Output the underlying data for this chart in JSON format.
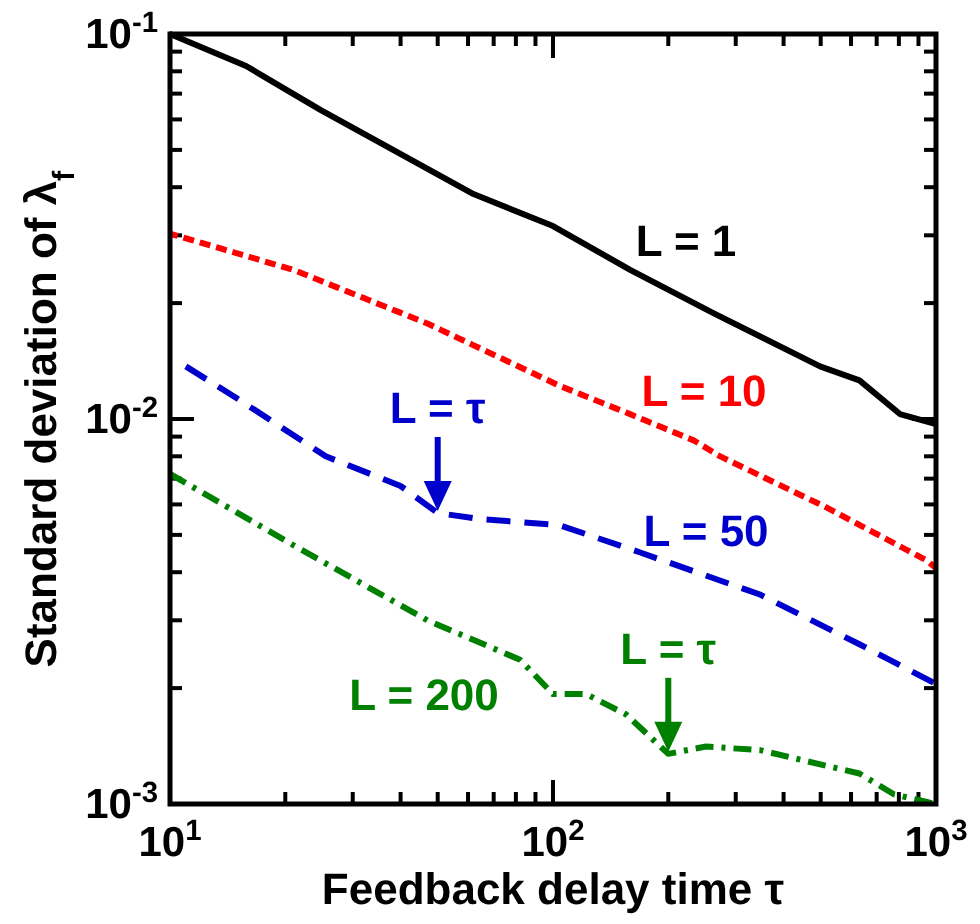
{
  "chart_data": {
    "type": "line",
    "xlabel": "Feedback delay time τ",
    "ylabel": "Standard deviation of λ$_{f}$",
    "log": "xy",
    "grid": false,
    "marker": "none",
    "xlim": [
      10,
      1000
    ],
    "ylim": [
      0.001,
      0.1
    ],
    "xticks": [
      {
        "value": 10,
        "label": "10$^{1}$"
      },
      {
        "value": 20,
        "label": null
      },
      {
        "value": 30,
        "label": null
      },
      {
        "value": 40,
        "label": null
      },
      {
        "value": 50,
        "label": null
      },
      {
        "value": 60,
        "label": null
      },
      {
        "value": 70,
        "label": null
      },
      {
        "value": 80,
        "label": null
      },
      {
        "value": 90,
        "label": null
      },
      {
        "value": 100,
        "label": "10$^{2}$"
      },
      {
        "value": 200,
        "label": null
      },
      {
        "value": 300,
        "label": null
      },
      {
        "value": 400,
        "label": null
      },
      {
        "value": 500,
        "label": null
      },
      {
        "value": 600,
        "label": null
      },
      {
        "value": 700,
        "label": null
      },
      {
        "value": 800,
        "label": null
      },
      {
        "value": 900,
        "label": null
      },
      {
        "value": 1000,
        "label": "10$^{3}$"
      }
    ],
    "yticks": [
      {
        "value": 0.001,
        "label": "10$^{-3}$"
      },
      {
        "value": 0.002,
        "label": null
      },
      {
        "value": 0.003,
        "label": null
      },
      {
        "value": 0.004,
        "label": null
      },
      {
        "value": 0.005,
        "label": null
      },
      {
        "value": 0.006,
        "label": null
      },
      {
        "value": 0.007,
        "label": null
      },
      {
        "value": 0.008,
        "label": null
      },
      {
        "value": 0.009,
        "label": null
      },
      {
        "value": 0.01,
        "label": "10$^{-2}$"
      },
      {
        "value": 0.02,
        "label": null
      },
      {
        "value": 0.03,
        "label": null
      },
      {
        "value": 0.04,
        "label": null
      },
      {
        "value": 0.05,
        "label": null
      },
      {
        "value": 0.06,
        "label": null
      },
      {
        "value": 0.07,
        "label": null
      },
      {
        "value": 0.08,
        "label": null
      },
      {
        "value": 0.09,
        "label": null
      },
      {
        "value": 0.1,
        "label": "10$^{-1}$"
      }
    ],
    "series": [
      {
        "name": "L = 1",
        "color": "#000000",
        "line_style": "solid",
        "x": [
          10,
          15.8,
          24.7,
          62,
          100,
          159,
          263,
          498,
          631,
          805,
          1000
        ],
        "values": [
          0.1,
          0.0826,
          0.0635,
          0.0384,
          0.0317,
          0.0244,
          0.0188,
          0.0137,
          0.0126,
          0.0103,
          0.0097
        ]
      },
      {
        "name": "L = 10",
        "color": "#ff0000",
        "line_style": "dotted",
        "x": [
          10,
          21,
          47,
          104,
          155,
          233,
          273,
          516,
          942,
          1000
        ],
        "values": [
          0.0303,
          0.0244,
          0.0177,
          0.0122,
          0.0104,
          0.0088,
          0.008,
          0.0059,
          0.0043,
          0.0041
        ]
      },
      {
        "name": "L = 50",
        "color": "#0000cc",
        "line_style": "dashed",
        "x": [
          11,
          15.2,
          25.5,
          40,
          50,
          64,
          104,
          169,
          347,
          631,
          1000
        ],
        "values": [
          0.0137,
          0.0112,
          0.008,
          0.0067,
          0.0057,
          0.0055,
          0.0053,
          0.0045,
          0.0035,
          0.0026,
          0.00205
        ]
      },
      {
        "name": "L = 200",
        "color": "#008000",
        "line_style": "dashdot",
        "x": [
          10,
          21,
          47,
          82,
          100,
          122,
          155,
          200,
          251,
          347,
          631,
          776,
          1000
        ],
        "values": [
          0.0072,
          0.0047,
          0.003,
          0.00237,
          0.00193,
          0.00193,
          0.00171,
          0.00135,
          0.00141,
          0.00138,
          0.0012,
          0.00106,
          0.001
        ]
      }
    ],
    "annotations": [
      {
        "text": "L = τ",
        "x": 50,
        "y": 0.0057
      },
      {
        "text": "L = τ",
        "x": 200,
        "y": 0.00135
      }
    ]
  }
}
